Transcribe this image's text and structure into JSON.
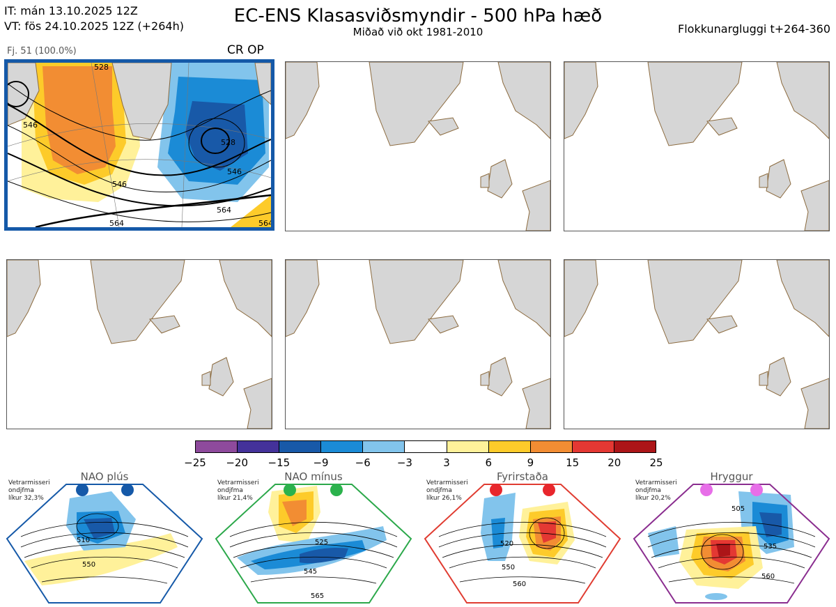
{
  "header": {
    "initial_time": "IT: mán 13.10.2025 12Z",
    "valid_time": "VT: fös 24.10.2025 12Z  (+264h)",
    "title": "EC-ENS Klasasviðsmyndir - 500 hPa hæð",
    "subtitle": "Miðað við okt 1981-2010",
    "window": "Flokkunargluggi t+264-360"
  },
  "main_panel": {
    "member_label": "Fj. 51 (100.0%)",
    "regime_code": "CR OP",
    "contour_labels": [
      "528",
      "546",
      "546",
      "528",
      "546",
      "564",
      "564",
      "564"
    ]
  },
  "colorbar": {
    "ticks": [
      "−25",
      "−20",
      "−15",
      "−9",
      "−6",
      "−3",
      "3",
      "6",
      "9",
      "15",
      "20",
      "25"
    ],
    "colors": [
      "#8e4a9c",
      "#44329a",
      "#1859a8",
      "#1b8bd6",
      "#82c4ec",
      "#ffffff",
      "#fff19a",
      "#fdcb2a",
      "#f28d33",
      "#e43833",
      "#ac1518"
    ]
  },
  "regimes": [
    {
      "name": "NAO plús",
      "info": [
        "Vetrarmisseri",
        "ondjfma",
        "líkur 32,3%"
      ],
      "frame_color": "#1559a8",
      "dot_color": "#1559a8",
      "labels": [
        "510",
        "550"
      ]
    },
    {
      "name": "NAO mínus",
      "info": [
        "Vetrarmisseri",
        "ondjfma",
        "líkur 21,4%"
      ],
      "frame_color": "#2ba84a",
      "dot_color": "#2bb24c",
      "labels": [
        "525",
        "545",
        "565"
      ]
    },
    {
      "name": "Fyrirstaða",
      "info": [
        "Vetrarmisseri",
        "ondjfma",
        "líkur 26,1%"
      ],
      "frame_color": "#e03c31",
      "dot_color": "#e8262c",
      "labels": [
        "520",
        "550",
        "560"
      ]
    },
    {
      "name": "Hryggur",
      "info": [
        "Vetrarmisseri",
        "ondjfma",
        "líkur 20,2%"
      ],
      "frame_color": "#8a2d8f",
      "dot_color": "#e76ee8",
      "labels": [
        "505",
        "535",
        "560"
      ]
    }
  ]
}
